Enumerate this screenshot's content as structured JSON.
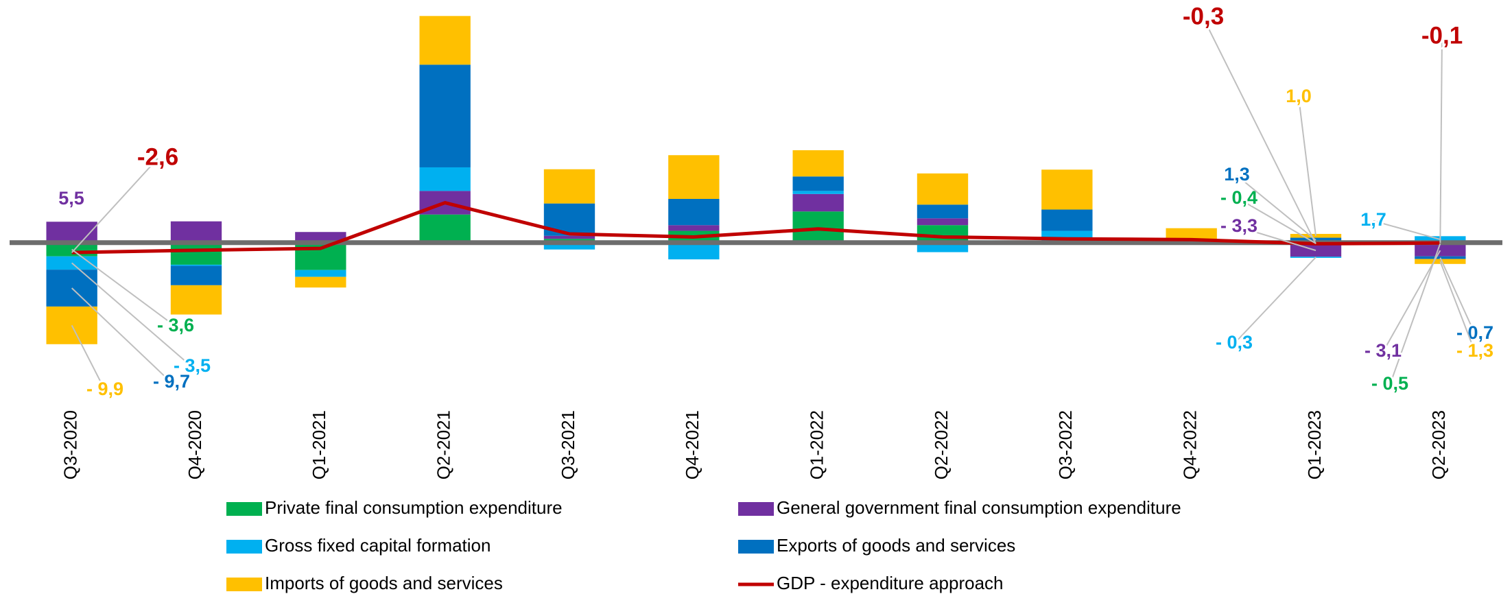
{
  "chart_data": {
    "type": "bar",
    "categories": [
      "Q3-2020",
      "Q4-2020",
      "Q1-2021",
      "Q2-2021",
      "Q3-2021",
      "Q4-2021",
      "Q1-2022",
      "Q2-2022",
      "Q3-2022",
      "Q4-2022",
      "Q1-2023",
      "Q2-2023"
    ],
    "ylim": [
      -28,
      62
    ],
    "series": [
      {
        "name": "Private final consumption expenditure",
        "color": "#00b050",
        "values": [
          -3.6,
          -5.8,
          -7.2,
          7.4,
          1.0,
          3.1,
          8.2,
          4.6,
          0.5,
          0,
          -0.4,
          -0.5
        ],
        "value_labels": [
          "- 3,6",
          null,
          null,
          null,
          null,
          null,
          null,
          null,
          null,
          null,
          "- 0,4",
          "- 0,5"
        ]
      },
      {
        "name": "General government final consumption expenditure",
        "color": "#7030a0",
        "values": [
          5.5,
          5.6,
          2.8,
          6.2,
          0.8,
          1.5,
          4.6,
          1.8,
          0,
          0,
          -3.3,
          -3.1
        ],
        "value_labels": [
          "5,5",
          null,
          null,
          null,
          null,
          null,
          null,
          null,
          null,
          null,
          "- 3,3",
          "- 3,1"
        ]
      },
      {
        "name": "Gross fixed capital formation",
        "color": "#00b0f0",
        "values": [
          -3.5,
          -0.3,
          -1.8,
          6.2,
          -1.8,
          -4.4,
          0.8,
          -2.5,
          2.6,
          0,
          -0.3,
          1.7
        ],
        "value_labels": [
          "- 3,5",
          null,
          null,
          null,
          null,
          null,
          null,
          null,
          null,
          null,
          "- 0,3",
          "1,7"
        ]
      },
      {
        "name": "Exports of goods and services",
        "color": "#0070c0",
        "values": [
          -9.7,
          -5.1,
          0,
          27.0,
          8.5,
          6.9,
          3.8,
          3.6,
          5.6,
          0,
          1.3,
          -0.7
        ],
        "value_labels": [
          "- 9,7",
          null,
          null,
          null,
          null,
          null,
          null,
          null,
          null,
          null,
          "1,3",
          "- 0,7"
        ]
      },
      {
        "name": "Imports of goods and services",
        "color": "#ffc000",
        "values": [
          -9.9,
          -7.7,
          -2.8,
          12.8,
          9.0,
          11.5,
          6.9,
          8.2,
          10.5,
          3.8,
          1.0,
          -1.3
        ],
        "value_labels": [
          "- 9,9",
          null,
          null,
          null,
          null,
          null,
          null,
          null,
          null,
          null,
          "1,0",
          "- 1,3"
        ]
      },
      {
        "name": "GDP - expenditure approach",
        "color": "#c00000",
        "type": "line",
        "values": [
          -2.6,
          -2.0,
          -1.5,
          10.5,
          2.3,
          1.5,
          3.6,
          1.5,
          1.0,
          0.8,
          -0.3,
          -0.1
        ],
        "value_labels": [
          "-2,6",
          null,
          null,
          null,
          null,
          null,
          null,
          null,
          null,
          null,
          "-0,3",
          "-0,1"
        ]
      }
    ]
  }
}
